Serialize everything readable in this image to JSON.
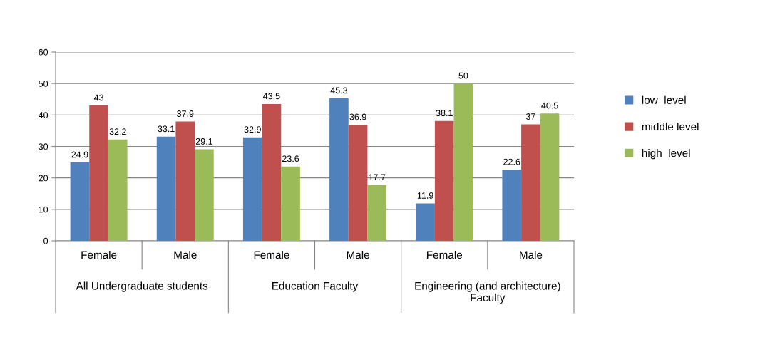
{
  "chart_data": {
    "type": "bar",
    "categories": [
      "Female",
      "Male",
      "Female",
      "Male",
      "Female",
      "Male"
    ],
    "annotations": [
      "All Undergraduate students",
      "Education Faculty",
      "Engineering (and architecture) Faculty"
    ],
    "series": [
      {
        "name": "low  level",
        "color": "#4f81bd",
        "values": [
          24.9,
          33.1,
          32.9,
          45.3,
          11.9,
          22.6
        ]
      },
      {
        "name": "middle level",
        "color": "#c0504d",
        "values": [
          43,
          37.9,
          43.5,
          36.9,
          38.1,
          37
        ]
      },
      {
        "name": "high  level",
        "color": "#9bbb59",
        "values": [
          32.2,
          29.1,
          23.6,
          17.7,
          50,
          40.5
        ]
      }
    ],
    "ylim": [
      0,
      60
    ],
    "yticks": [
      0,
      10,
      20,
      30,
      40,
      50,
      60
    ],
    "grid": "y",
    "legend": "right",
    "data_labels": true
  }
}
